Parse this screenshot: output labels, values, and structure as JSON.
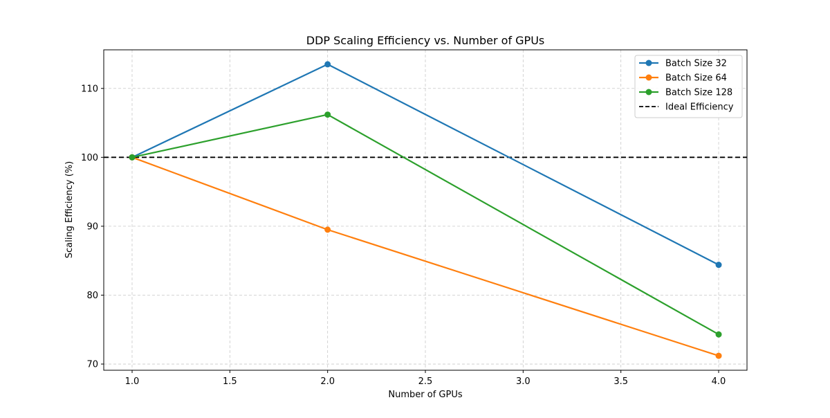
{
  "chart_data": {
    "type": "line",
    "title": "DDP Scaling Efficiency vs. Number of GPUs",
    "xlabel": "Number of GPUs",
    "ylabel": "Scaling Efficiency (%)",
    "xlim": [
      0.855,
      4.145
    ],
    "ylim": [
      69.1,
      115.6
    ],
    "xticks": [
      1.0,
      1.5,
      2.0,
      2.5,
      3.0,
      3.5,
      4.0
    ],
    "xtick_labels": [
      "1.0",
      "1.5",
      "2.0",
      "2.5",
      "3.0",
      "3.5",
      "4.0"
    ],
    "yticks": [
      70,
      80,
      90,
      100,
      110
    ],
    "ytick_labels": [
      "70",
      "80",
      "90",
      "100",
      "110"
    ],
    "grid": true,
    "legend_position": "top-right",
    "x": [
      1,
      2,
      4
    ],
    "series": [
      {
        "name": "Batch Size 32",
        "values": [
          100,
          113.5,
          84.4
        ],
        "color": "#1f77b4",
        "marker": "circle"
      },
      {
        "name": "Batch Size 64",
        "values": [
          100,
          89.5,
          71.2
        ],
        "color": "#ff7f0e",
        "marker": "circle"
      },
      {
        "name": "Batch Size 128",
        "values": [
          100,
          106.2,
          74.3
        ],
        "color": "#2ca02c",
        "marker": "circle"
      }
    ],
    "reference_line": {
      "name": "Ideal Efficiency",
      "y": 100,
      "color": "#000000",
      "style": "dashed"
    }
  }
}
